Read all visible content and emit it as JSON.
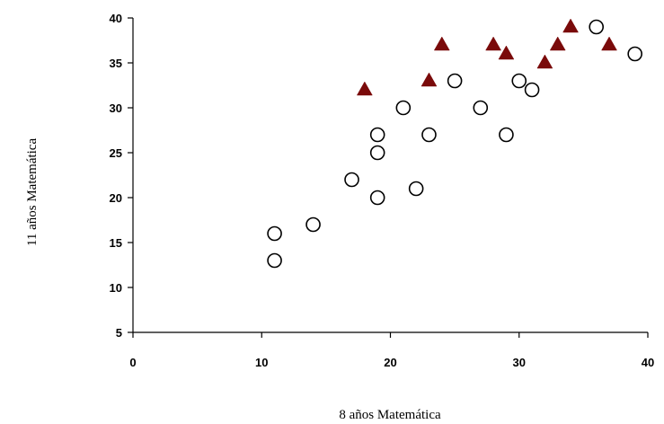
{
  "chart_data": {
    "type": "scatter",
    "xlabel": "8 años Matemática",
    "ylabel": "11 años Matemática",
    "xlim": [
      0,
      40
    ],
    "ylim": [
      5,
      40
    ],
    "x_ticks": [
      0,
      10,
      20,
      30,
      40
    ],
    "y_ticks": [
      5,
      10,
      15,
      20,
      25,
      30,
      35,
      40
    ],
    "grid": false,
    "legend": "none",
    "series": [
      {
        "marker": "open-circle",
        "color": "#000000",
        "points": [
          [
            11,
            16
          ],
          [
            11,
            13
          ],
          [
            14,
            17
          ],
          [
            17,
            22
          ],
          [
            19,
            27
          ],
          [
            19,
            25
          ],
          [
            19,
            20
          ],
          [
            21,
            30
          ],
          [
            22,
            21
          ],
          [
            23,
            27
          ],
          [
            25,
            33
          ],
          [
            27,
            30
          ],
          [
            29,
            27
          ],
          [
            30,
            33
          ],
          [
            31,
            32
          ],
          [
            36,
            39
          ],
          [
            39,
            36
          ]
        ]
      },
      {
        "marker": "filled-triangle",
        "color": "#7a0a0a",
        "points": [
          [
            18,
            32
          ],
          [
            23,
            33
          ],
          [
            24,
            37
          ],
          [
            28,
            37
          ],
          [
            29,
            36
          ],
          [
            32,
            35
          ],
          [
            33,
            37
          ],
          [
            34,
            39
          ],
          [
            37,
            37
          ]
        ]
      }
    ]
  }
}
